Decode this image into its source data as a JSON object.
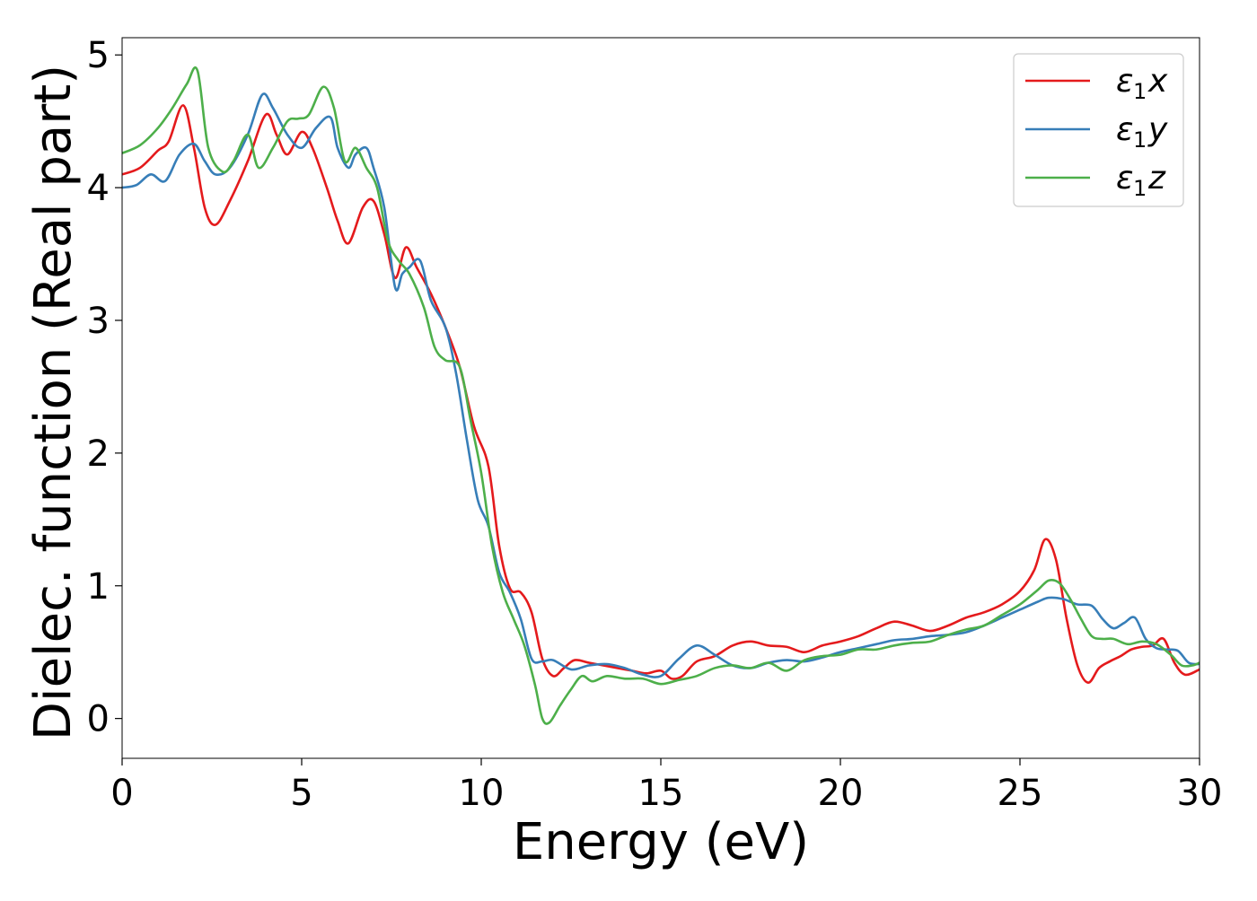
{
  "chart_data": {
    "type": "line",
    "xlabel": "Energy (eV)",
    "ylabel": "Dielec. function (Real part)",
    "xlim": [
      0,
      30
    ],
    "ylim": [
      -0.3,
      5.13
    ],
    "xticks": [
      0,
      5,
      10,
      15,
      20,
      25,
      30
    ],
    "yticks": [
      0,
      1,
      2,
      3,
      4,
      5
    ],
    "xtick_labels": [
      "0",
      "5",
      "10",
      "15",
      "20",
      "25",
      "30"
    ],
    "ytick_labels": [
      "0",
      "1",
      "2",
      "3",
      "4",
      "5"
    ],
    "grid": false,
    "legend_position": "top-right",
    "series": [
      {
        "name": "ε₁x",
        "legend_main": "ε",
        "legend_sub": "1",
        "legend_var": "x",
        "color": "#e41a1c",
        "x": [
          0,
          0.5,
          1.0,
          1.3,
          1.7,
          2.0,
          2.3,
          2.6,
          3.0,
          3.5,
          4.0,
          4.3,
          4.6,
          5.0,
          5.3,
          5.7,
          6.0,
          6.3,
          6.7,
          7.0,
          7.3,
          7.6,
          7.9,
          8.2,
          8.6,
          9.0,
          9.4,
          9.8,
          10.2,
          10.5,
          10.8,
          11.1,
          11.4,
          11.7,
          12.0,
          12.3,
          12.6,
          13.0,
          13.4,
          13.8,
          14.2,
          14.6,
          15.0,
          15.3,
          15.6,
          16.0,
          16.5,
          17.0,
          17.5,
          18.0,
          18.5,
          19.0,
          19.5,
          20.0,
          20.5,
          21.0,
          21.5,
          22.0,
          22.5,
          23.0,
          23.5,
          24.0,
          24.5,
          25.0,
          25.4,
          25.7,
          26.0,
          26.3,
          26.6,
          26.9,
          27.2,
          27.5,
          27.8,
          28.1,
          28.4,
          28.7,
          29.0,
          29.3,
          29.6,
          30.0
        ],
        "y": [
          4.1,
          4.15,
          4.28,
          4.35,
          4.62,
          4.3,
          3.85,
          3.72,
          3.9,
          4.2,
          4.55,
          4.4,
          4.25,
          4.42,
          4.3,
          4.0,
          3.75,
          3.58,
          3.85,
          3.9,
          3.65,
          3.32,
          3.55,
          3.4,
          3.2,
          2.95,
          2.65,
          2.2,
          1.9,
          1.3,
          0.98,
          0.95,
          0.8,
          0.45,
          0.32,
          0.38,
          0.44,
          0.42,
          0.4,
          0.38,
          0.36,
          0.34,
          0.36,
          0.3,
          0.32,
          0.43,
          0.47,
          0.55,
          0.58,
          0.55,
          0.54,
          0.5,
          0.55,
          0.58,
          0.62,
          0.68,
          0.73,
          0.7,
          0.66,
          0.7,
          0.76,
          0.8,
          0.86,
          0.96,
          1.12,
          1.35,
          1.2,
          0.75,
          0.4,
          0.27,
          0.38,
          0.43,
          0.47,
          0.52,
          0.54,
          0.55,
          0.6,
          0.42,
          0.33,
          0.37
        ]
      },
      {
        "name": "ε₁y",
        "legend_main": "ε",
        "legend_sub": "1",
        "legend_var": "y",
        "color": "#377eb8",
        "x": [
          0,
          0.4,
          0.8,
          1.2,
          1.6,
          2.0,
          2.3,
          2.6,
          3.0,
          3.5,
          3.9,
          4.2,
          4.6,
          5.0,
          5.4,
          5.8,
          6.0,
          6.3,
          6.5,
          6.8,
          7.0,
          7.3,
          7.6,
          7.8,
          8.0,
          8.3,
          8.6,
          9.0,
          9.3,
          9.6,
          9.9,
          10.2,
          10.5,
          10.8,
          11.1,
          11.4,
          11.7,
          12.0,
          12.5,
          13.0,
          13.5,
          14.0,
          14.5,
          15.0,
          15.5,
          16.0,
          16.5,
          17.0,
          17.5,
          18.0,
          18.5,
          19.0,
          19.5,
          20.0,
          20.5,
          21.0,
          21.5,
          22.0,
          22.5,
          23.0,
          23.5,
          24.0,
          24.5,
          25.0,
          25.5,
          25.8,
          26.2,
          26.6,
          27.0,
          27.3,
          27.6,
          27.9,
          28.2,
          28.5,
          28.8,
          29.1,
          29.4,
          29.7,
          30.0
        ],
        "y": [
          4.0,
          4.02,
          4.1,
          4.05,
          4.25,
          4.33,
          4.2,
          4.1,
          4.15,
          4.4,
          4.7,
          4.6,
          4.4,
          4.3,
          4.45,
          4.53,
          4.3,
          4.15,
          4.25,
          4.3,
          4.15,
          3.85,
          3.25,
          3.35,
          3.4,
          3.45,
          3.15,
          2.95,
          2.6,
          2.1,
          1.65,
          1.45,
          1.1,
          0.95,
          0.75,
          0.45,
          0.43,
          0.44,
          0.37,
          0.4,
          0.41,
          0.38,
          0.33,
          0.32,
          0.45,
          0.55,
          0.48,
          0.4,
          0.38,
          0.42,
          0.44,
          0.43,
          0.46,
          0.5,
          0.53,
          0.56,
          0.59,
          0.6,
          0.62,
          0.63,
          0.65,
          0.7,
          0.76,
          0.82,
          0.88,
          0.91,
          0.9,
          0.86,
          0.85,
          0.75,
          0.68,
          0.72,
          0.76,
          0.6,
          0.53,
          0.52,
          0.51,
          0.42,
          0.41
        ]
      },
      {
        "name": "ε₁z",
        "legend_main": "ε",
        "legend_sub": "1",
        "legend_var": "z",
        "color": "#4daf4a",
        "x": [
          0,
          0.5,
          1.0,
          1.4,
          1.8,
          2.1,
          2.4,
          2.8,
          3.1,
          3.5,
          3.8,
          4.2,
          4.6,
          4.9,
          5.2,
          5.6,
          5.9,
          6.2,
          6.5,
          6.8,
          7.1,
          7.4,
          7.7,
          8.0,
          8.4,
          8.7,
          9.0,
          9.4,
          9.7,
          10.0,
          10.3,
          10.6,
          10.9,
          11.2,
          11.5,
          11.7,
          11.9,
          12.2,
          12.5,
          12.8,
          13.1,
          13.5,
          14.0,
          14.5,
          15.0,
          15.5,
          16.0,
          16.5,
          17.0,
          17.5,
          18.0,
          18.5,
          19.0,
          19.5,
          20.0,
          20.5,
          21.0,
          21.5,
          22.0,
          22.5,
          23.0,
          23.5,
          24.0,
          24.5,
          25.0,
          25.5,
          25.8,
          26.1,
          26.4,
          26.7,
          27.0,
          27.3,
          27.6,
          28.0,
          28.4,
          28.8,
          29.2,
          29.5,
          29.8,
          30.0
        ],
        "y": [
          4.26,
          4.32,
          4.45,
          4.6,
          4.78,
          4.88,
          4.3,
          4.12,
          4.2,
          4.4,
          4.15,
          4.3,
          4.5,
          4.52,
          4.55,
          4.76,
          4.6,
          4.2,
          4.3,
          4.15,
          4.0,
          3.6,
          3.45,
          3.35,
          3.1,
          2.8,
          2.7,
          2.65,
          2.25,
          1.85,
          1.3,
          0.95,
          0.75,
          0.55,
          0.25,
          0.0,
          -0.03,
          0.1,
          0.22,
          0.32,
          0.28,
          0.32,
          0.3,
          0.3,
          0.26,
          0.29,
          0.32,
          0.38,
          0.4,
          0.38,
          0.42,
          0.36,
          0.44,
          0.47,
          0.48,
          0.52,
          0.52,
          0.55,
          0.57,
          0.58,
          0.63,
          0.67,
          0.7,
          0.78,
          0.86,
          0.97,
          1.04,
          1.02,
          0.9,
          0.75,
          0.62,
          0.6,
          0.6,
          0.56,
          0.58,
          0.56,
          0.48,
          0.4,
          0.4,
          0.42
        ]
      }
    ]
  }
}
